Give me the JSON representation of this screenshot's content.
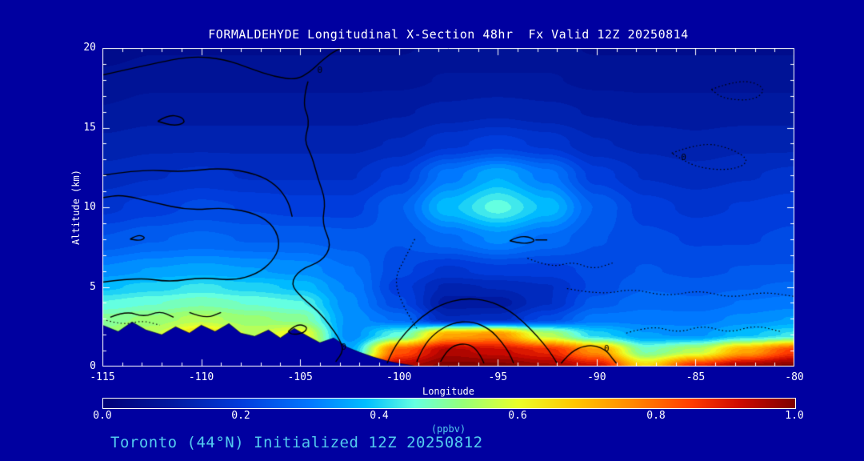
{
  "title": "FORMALDEHYDE Longitudinal X-Section 48hr  Fx Valid 12Z 20250814",
  "footer": "Toronto (44°N) Initialized 12Z 20250812",
  "colors": {
    "background": "#0000a0",
    "text": "#ffffff",
    "accent": "#53cbee",
    "contour": "#000000"
  },
  "chart_data": {
    "type": "heatmap",
    "title": "FORMALDEHYDE Longitudinal X-Section 48hr  Fx Valid 12Z 20250814",
    "subtitle": "Toronto (44°N) Initialized 12Z 20250812",
    "xlabel": "Longitude",
    "ylabel": "Altitude (km)",
    "units_label": "(ppbv)",
    "xlim": [
      -115,
      -80
    ],
    "ylim": [
      0,
      20
    ],
    "x_ticks": [
      -115,
      -110,
      -105,
      -100,
      -95,
      -90,
      -85,
      -80
    ],
    "y_ticks": [
      0,
      5,
      10,
      15,
      20
    ],
    "colorbar": {
      "min": 0.0,
      "max": 1.0,
      "ticks": [
        "0.0",
        "0.2",
        "0.4",
        "0.6",
        "0.8",
        "1.0"
      ],
      "label": "(ppbv)"
    },
    "colormap": [
      [
        0.0,
        0,
        0,
        120
      ],
      [
        0.1,
        0,
        25,
        160
      ],
      [
        0.2,
        0,
        60,
        220
      ],
      [
        0.3,
        0,
        120,
        255
      ],
      [
        0.38,
        0,
        190,
        255
      ],
      [
        0.45,
        100,
        255,
        225
      ],
      [
        0.52,
        150,
        255,
        120
      ],
      [
        0.6,
        235,
        255,
        40
      ],
      [
        0.68,
        255,
        200,
        0
      ],
      [
        0.76,
        255,
        140,
        0
      ],
      [
        0.85,
        255,
        60,
        0
      ],
      [
        0.92,
        205,
        10,
        0
      ],
      [
        1.0,
        125,
        0,
        0
      ]
    ],
    "grid": {
      "lon": [
        -115,
        -112.5,
        -110,
        -107.5,
        -105,
        -102.5,
        -100,
        -97.5,
        -95,
        -92.5,
        -90,
        -87.5,
        -85,
        -82.5,
        -80
      ],
      "alt_km": [
        0,
        1,
        2,
        3,
        4,
        5,
        6,
        8,
        10,
        12,
        14,
        16,
        18,
        20
      ],
      "values": [
        [
          0.62,
          0.66,
          0.7,
          0.68,
          0.7,
          0.62,
          0.95,
          1.0,
          1.0,
          0.97,
          0.92,
          0.66,
          0.88,
          0.97,
          1.0
        ],
        [
          0.58,
          0.62,
          0.64,
          0.62,
          0.66,
          0.36,
          0.82,
          0.95,
          0.92,
          0.88,
          0.75,
          0.48,
          0.55,
          0.72,
          0.85
        ],
        [
          0.52,
          0.56,
          0.66,
          0.56,
          0.62,
          0.32,
          0.45,
          0.72,
          0.75,
          0.55,
          0.4,
          0.34,
          0.33,
          0.38,
          0.42
        ],
        [
          0.5,
          0.52,
          0.55,
          0.52,
          0.5,
          0.33,
          0.28,
          0.14,
          0.15,
          0.22,
          0.3,
          0.3,
          0.3,
          0.32,
          0.34
        ],
        [
          0.44,
          0.46,
          0.48,
          0.46,
          0.44,
          0.32,
          0.22,
          0.1,
          0.1,
          0.16,
          0.25,
          0.28,
          0.27,
          0.29,
          0.3
        ],
        [
          0.38,
          0.4,
          0.42,
          0.4,
          0.38,
          0.31,
          0.2,
          0.13,
          0.14,
          0.16,
          0.22,
          0.26,
          0.25,
          0.26,
          0.27
        ],
        [
          0.32,
          0.34,
          0.35,
          0.34,
          0.33,
          0.29,
          0.22,
          0.18,
          0.2,
          0.2,
          0.22,
          0.24,
          0.23,
          0.24,
          0.24
        ],
        [
          0.24,
          0.26,
          0.27,
          0.26,
          0.26,
          0.25,
          0.24,
          0.28,
          0.32,
          0.28,
          0.24,
          0.22,
          0.21,
          0.21,
          0.22
        ],
        [
          0.18,
          0.2,
          0.22,
          0.21,
          0.2,
          0.2,
          0.26,
          0.38,
          0.45,
          0.38,
          0.26,
          0.2,
          0.18,
          0.19,
          0.2
        ],
        [
          0.15,
          0.16,
          0.17,
          0.16,
          0.16,
          0.16,
          0.2,
          0.3,
          0.36,
          0.3,
          0.2,
          0.16,
          0.15,
          0.16,
          0.17
        ],
        [
          0.12,
          0.13,
          0.13,
          0.13,
          0.13,
          0.13,
          0.14,
          0.18,
          0.2,
          0.18,
          0.14,
          0.13,
          0.12,
          0.13,
          0.13
        ],
        [
          0.09,
          0.1,
          0.1,
          0.1,
          0.1,
          0.1,
          0.11,
          0.12,
          0.13,
          0.12,
          0.11,
          0.1,
          0.1,
          0.1,
          0.1
        ],
        [
          0.07,
          0.08,
          0.08,
          0.08,
          0.08,
          0.08,
          0.08,
          0.09,
          0.09,
          0.09,
          0.08,
          0.08,
          0.08,
          0.08,
          0.08
        ],
        [
          0.05,
          0.06,
          0.06,
          0.06,
          0.06,
          0.06,
          0.06,
          0.07,
          0.07,
          0.07,
          0.06,
          0.06,
          0.06,
          0.06,
          0.06
        ]
      ]
    },
    "terrain": {
      "lon": [
        -115,
        -114.2,
        -113.5,
        -112.8,
        -112.0,
        -111.3,
        -110.6,
        -110.0,
        -109.3,
        -108.6,
        -108.0,
        -107.3,
        -106.6,
        -106.0,
        -105.3,
        -104.6,
        -104.0,
        -103.3,
        -102.6,
        -102.0,
        -101.3,
        -100.6,
        -100.0,
        -99.0,
        -98.0,
        -96.0,
        -94.0,
        -92.0,
        -90.0,
        -88.0,
        -86.0,
        -84.0,
        -82.0,
        -80.0
      ],
      "height_km": [
        2.6,
        2.2,
        2.8,
        2.3,
        2.0,
        2.5,
        2.1,
        2.6,
        2.2,
        2.7,
        2.1,
        1.9,
        2.3,
        1.8,
        2.4,
        1.9,
        1.5,
        1.8,
        1.2,
        0.9,
        0.6,
        0.35,
        0.2,
        0.0,
        0.0,
        0.0,
        0.0,
        0.0,
        0.0,
        0.0,
        0.0,
        0.0,
        0.0,
        0.0
      ]
    },
    "contours": {
      "level": 0,
      "solid": [
        [
          [
            -115,
            18.3
          ],
          [
            -112.5,
            19.0
          ],
          [
            -110.5,
            19.5
          ],
          [
            -108.8,
            19.3
          ],
          [
            -107.5,
            18.7
          ],
          [
            -106.3,
            18.2
          ],
          [
            -105.2,
            18.0
          ],
          [
            -104.5,
            18.5
          ],
          [
            -104.0,
            19.1
          ],
          [
            -103.4,
            19.7
          ],
          [
            -102.9,
            20.0
          ]
        ],
        [
          [
            -104.6,
            17.9
          ],
          [
            -104.9,
            16.6
          ],
          [
            -104.5,
            15.4
          ],
          [
            -104.8,
            14.2
          ],
          [
            -104.4,
            13.2
          ],
          [
            -104.1,
            11.8
          ],
          [
            -103.7,
            10.4
          ],
          [
            -103.9,
            9.0
          ],
          [
            -103.4,
            7.6
          ],
          [
            -103.9,
            6.6
          ],
          [
            -105.0,
            6.1
          ],
          [
            -105.5,
            5.2
          ],
          [
            -104.9,
            4.3
          ],
          [
            -104.1,
            3.5
          ],
          [
            -103.5,
            2.6
          ],
          [
            -103.0,
            1.7
          ],
          [
            -102.8,
            1.0
          ],
          [
            -103.2,
            0.3
          ]
        ],
        [
          [
            -112.2,
            15.4
          ],
          [
            -111.7,
            15.8
          ],
          [
            -111.0,
            15.7
          ],
          [
            -110.8,
            15.3
          ],
          [
            -111.4,
            15.1
          ],
          [
            -112.2,
            15.4
          ]
        ],
        [
          [
            -115,
            5.3
          ],
          [
            -113.2,
            5.6
          ],
          [
            -111.6,
            5.3
          ],
          [
            -110.0,
            5.6
          ],
          [
            -108.4,
            5.4
          ],
          [
            -107.2,
            5.8
          ],
          [
            -106.4,
            6.6
          ],
          [
            -106.0,
            7.6
          ],
          [
            -106.3,
            8.8
          ],
          [
            -107.2,
            9.6
          ],
          [
            -108.8,
            10.0
          ],
          [
            -110.6,
            9.8
          ],
          [
            -112.4,
            10.3
          ],
          [
            -114.0,
            10.8
          ],
          [
            -115,
            10.6
          ]
        ],
        [
          [
            -115,
            12.0
          ],
          [
            -113.0,
            12.4
          ],
          [
            -111.0,
            12.2
          ],
          [
            -109.0,
            12.5
          ],
          [
            -107.2,
            12.1
          ],
          [
            -106.2,
            11.4
          ],
          [
            -105.6,
            10.4
          ],
          [
            -105.4,
            9.4
          ]
        ],
        [
          [
            -100.6,
            0.2
          ],
          [
            -100.3,
            1.1
          ],
          [
            -99.7,
            2.1
          ],
          [
            -98.9,
            3.1
          ],
          [
            -97.9,
            3.9
          ],
          [
            -96.7,
            4.3
          ],
          [
            -95.5,
            4.15
          ],
          [
            -94.5,
            3.6
          ],
          [
            -93.7,
            2.8
          ],
          [
            -93.0,
            1.9
          ],
          [
            -92.4,
            1.0
          ],
          [
            -92.0,
            0.2
          ]
        ],
        [
          [
            -99.1,
            0.3
          ],
          [
            -98.8,
            1.2
          ],
          [
            -98.2,
            2.1
          ],
          [
            -97.3,
            2.75
          ],
          [
            -96.3,
            2.85
          ],
          [
            -95.4,
            2.35
          ],
          [
            -94.8,
            1.55
          ],
          [
            -94.4,
            0.8
          ],
          [
            -94.2,
            0.2
          ]
        ],
        [
          [
            -97.9,
            0.3
          ],
          [
            -97.6,
            1.0
          ],
          [
            -97.0,
            1.45
          ],
          [
            -96.3,
            1.35
          ],
          [
            -95.9,
            0.75
          ],
          [
            -95.7,
            0.2
          ]
        ],
        [
          [
            -94.4,
            7.9
          ],
          [
            -93.9,
            8.2
          ],
          [
            -93.3,
            8.1
          ],
          [
            -93.1,
            7.85
          ],
          [
            -93.7,
            7.7
          ],
          [
            -94.4,
            7.9
          ]
        ],
        [
          [
            -93.1,
            7.95
          ],
          [
            -92.5,
            7.95
          ]
        ],
        [
          [
            -91.8,
            0.2
          ],
          [
            -91.4,
            0.8
          ],
          [
            -90.8,
            1.25
          ],
          [
            -90.1,
            1.35
          ],
          [
            -89.5,
            1.0
          ],
          [
            -89.2,
            0.5
          ],
          [
            -89.0,
            0.2
          ]
        ],
        [
          [
            -114.6,
            3.1
          ],
          [
            -113.8,
            3.5
          ],
          [
            -112.9,
            3.1
          ],
          [
            -112.1,
            3.5
          ],
          [
            -111.4,
            3.1
          ]
        ],
        [
          [
            -110.6,
            3.4
          ],
          [
            -109.8,
            3.0
          ],
          [
            -109.0,
            3.4
          ]
        ],
        [
          [
            -105.6,
            2.2
          ],
          [
            -105.2,
            2.7
          ],
          [
            -104.6,
            2.5
          ],
          [
            -104.8,
            2.1
          ],
          [
            -105.4,
            2.0
          ],
          [
            -105.6,
            2.2
          ]
        ],
        [
          [
            -113.6,
            8.0
          ],
          [
            -113.2,
            8.3
          ],
          [
            -112.8,
            8.1
          ],
          [
            -113.1,
            7.9
          ],
          [
            -113.6,
            8.0
          ]
        ]
      ],
      "dotted": [
        [
          [
            -99.2,
            8.0
          ],
          [
            -99.7,
            6.8
          ],
          [
            -100.2,
            5.6
          ],
          [
            -100.0,
            4.4
          ],
          [
            -99.5,
            3.2
          ],
          [
            -99.1,
            2.4
          ]
        ],
        [
          [
            -91.5,
            4.9
          ],
          [
            -89.8,
            4.5
          ],
          [
            -88.2,
            4.9
          ],
          [
            -86.5,
            4.4
          ],
          [
            -84.8,
            4.8
          ],
          [
            -83.2,
            4.3
          ],
          [
            -81.6,
            4.7
          ],
          [
            -80.0,
            4.4
          ]
        ],
        [
          [
            -88.5,
            2.1
          ],
          [
            -87.2,
            2.6
          ],
          [
            -85.9,
            2.1
          ],
          [
            -84.6,
            2.6
          ],
          [
            -83.3,
            2.1
          ],
          [
            -82.0,
            2.6
          ],
          [
            -80.7,
            2.2
          ]
        ],
        [
          [
            -86.2,
            13.4
          ],
          [
            -84.7,
            14.1
          ],
          [
            -83.2,
            13.7
          ],
          [
            -82.2,
            12.9
          ],
          [
            -83.2,
            12.3
          ],
          [
            -85.0,
            12.5
          ],
          [
            -86.2,
            13.4
          ]
        ],
        [
          [
            -84.2,
            17.4
          ],
          [
            -82.7,
            18.1
          ],
          [
            -81.4,
            17.5
          ],
          [
            -82.0,
            16.7
          ],
          [
            -83.6,
            16.8
          ],
          [
            -84.2,
            17.4
          ]
        ],
        [
          [
            -93.5,
            6.8
          ],
          [
            -92.3,
            6.2
          ],
          [
            -91.2,
            6.6
          ],
          [
            -90.2,
            6.1
          ],
          [
            -89.2,
            6.5
          ]
        ],
        [
          [
            -114.8,
            2.9
          ],
          [
            -113.9,
            2.6
          ],
          [
            -113.0,
            2.9
          ],
          [
            -112.1,
            2.6
          ]
        ]
      ],
      "labels": [
        {
          "text": "0",
          "lon": -104.0,
          "alt": 18.6
        },
        {
          "text": "0",
          "lon": -102.8,
          "alt": 1.2
        },
        {
          "text": "0",
          "lon": -89.5,
          "alt": 1.1
        },
        {
          "text": "0",
          "lon": -85.6,
          "alt": 13.1
        }
      ]
    }
  }
}
